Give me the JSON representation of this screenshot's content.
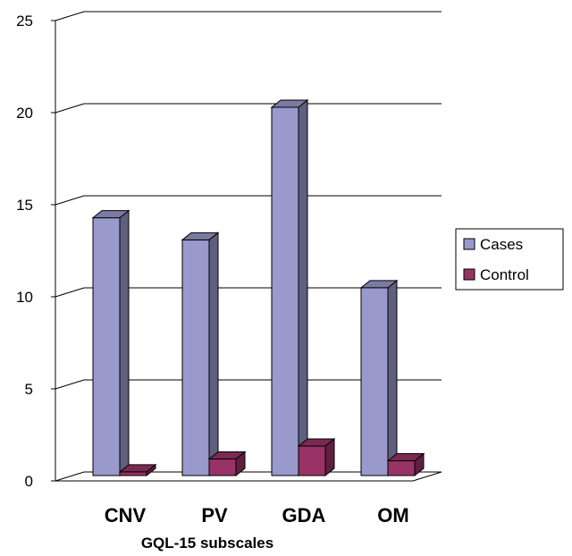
{
  "chart_data": {
    "type": "bar",
    "categories": [
      "CNV",
      "PV",
      "GDA",
      "OM"
    ],
    "series": [
      {
        "name": "Cases",
        "values": [
          14,
          12.8,
          20,
          10.2
        ],
        "color": "#9999cc"
      },
      {
        "name": "Control",
        "values": [
          0.2,
          0.9,
          1.6,
          0.8
        ],
        "color": "#993366"
      }
    ],
    "xlabel": "GQL-15 subscales",
    "ylabel": "",
    "ylim": [
      0,
      25
    ],
    "yticks": [
      0,
      5,
      10,
      15,
      20,
      25
    ],
    "grid": true,
    "legend_position": "right"
  }
}
